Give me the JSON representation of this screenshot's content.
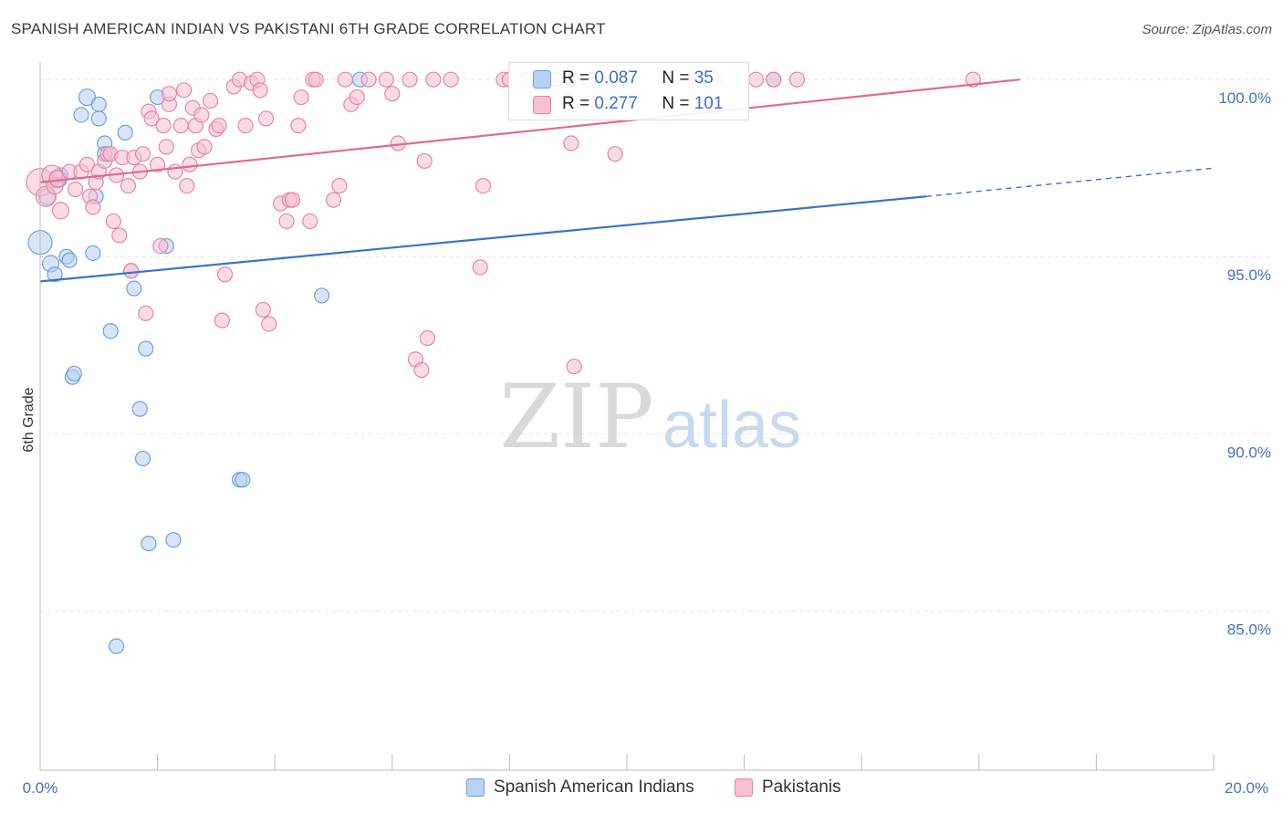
{
  "title": "SPANISH AMERICAN INDIAN VS PAKISTANI 6TH GRADE CORRELATION CHART",
  "source": "Source: ZipAtlas.com",
  "watermark": {
    "zip": "ZIP",
    "atlas": "atlas"
  },
  "legend": {
    "series": [
      {
        "name": "Spanish American Indians",
        "r_label": "R =",
        "r_value": "0.087",
        "n_label": "N =",
        "n_value": "35",
        "color": "#6fa0e0",
        "fill": "#b8d0f2"
      },
      {
        "name": "Pakistanis",
        "r_label": "R =",
        "r_value": "0.277",
        "n_label": "N =",
        "n_value": "101",
        "color": "#e884a6",
        "fill": "#f7bfd1"
      }
    ]
  },
  "chart_data": {
    "type": "scatter",
    "ylabel": "6th Grade",
    "xlim": [
      0,
      20
    ],
    "ylim": [
      80.5,
      100.7
    ],
    "x_tick_labels": [
      "0.0%",
      "20.0%"
    ],
    "y_ticks": [
      {
        "value": 100,
        "label": "100.0%"
      },
      {
        "value": 95,
        "label": "95.0%"
      },
      {
        "value": 90,
        "label": "90.0%"
      },
      {
        "value": 85,
        "label": "85.0%"
      }
    ],
    "grid": true,
    "series": [
      {
        "name": "Spanish American Indians",
        "color": "#6fa0e0",
        "fill": "#b8d0f2",
        "trend": {
          "x0": 0,
          "y0": 94.3,
          "x1": 15.1,
          "y1": 96.7,
          "dash_to_x": 20,
          "dash_to_y": 97.5,
          "color": "#3a72c8"
        },
        "points": [
          [
            0.0,
            95.4,
            26
          ],
          [
            0.12,
            96.7,
            18
          ],
          [
            0.18,
            94.8,
            18
          ],
          [
            0.25,
            94.5,
            16
          ],
          [
            0.3,
            97.2,
            20
          ],
          [
            0.45,
            95.0,
            16
          ],
          [
            0.5,
            94.9,
            16
          ],
          [
            0.55,
            91.6,
            16
          ],
          [
            0.58,
            91.7,
            16
          ],
          [
            0.7,
            99.0,
            16
          ],
          [
            0.8,
            99.5,
            18
          ],
          [
            0.9,
            95.1,
            16
          ],
          [
            0.95,
            96.7,
            16
          ],
          [
            1.0,
            99.3,
            16
          ],
          [
            1.0,
            98.9,
            16
          ],
          [
            1.1,
            98.2,
            16
          ],
          [
            1.1,
            97.9,
            16
          ],
          [
            1.2,
            92.9,
            16
          ],
          [
            1.3,
            84.0,
            16
          ],
          [
            1.45,
            98.5,
            16
          ],
          [
            1.55,
            94.6,
            16
          ],
          [
            1.6,
            94.1,
            16
          ],
          [
            1.7,
            90.7,
            16
          ],
          [
            1.75,
            89.3,
            16
          ],
          [
            1.8,
            92.4,
            16
          ],
          [
            1.85,
            86.9,
            16
          ],
          [
            2.0,
            99.5,
            16
          ],
          [
            2.15,
            95.3,
            16
          ],
          [
            2.27,
            87.0,
            16
          ],
          [
            3.4,
            88.7,
            16
          ],
          [
            3.45,
            88.7,
            16
          ],
          [
            4.8,
            93.9,
            16
          ],
          [
            5.45,
            100.0,
            16
          ],
          [
            12.5,
            100.0,
            16
          ],
          [
            0.35,
            97.3,
            16
          ]
        ]
      },
      {
        "name": "Pakistanis",
        "color": "#e884a6",
        "fill": "#f7bfd1",
        "trend": {
          "x0": 0,
          "y0": 97.1,
          "x1": 16.7,
          "y1": 100.0,
          "color": "#e06a94"
        },
        "points": [
          [
            0.0,
            97.1,
            30
          ],
          [
            0.1,
            96.7,
            22
          ],
          [
            0.2,
            97.3,
            22
          ],
          [
            0.25,
            97.0,
            18
          ],
          [
            0.3,
            97.2,
            18
          ],
          [
            0.35,
            96.3,
            18
          ],
          [
            0.5,
            97.4,
            16
          ],
          [
            0.6,
            96.9,
            16
          ],
          [
            0.7,
            97.4,
            16
          ],
          [
            0.8,
            97.6,
            16
          ],
          [
            0.85,
            96.7,
            16
          ],
          [
            0.9,
            96.4,
            16
          ],
          [
            0.95,
            97.1,
            16
          ],
          [
            1.0,
            97.4,
            16
          ],
          [
            1.1,
            97.7,
            16
          ],
          [
            1.15,
            97.9,
            16
          ],
          [
            1.2,
            97.9,
            16
          ],
          [
            1.25,
            96.0,
            16
          ],
          [
            1.3,
            97.3,
            16
          ],
          [
            1.35,
            95.6,
            16
          ],
          [
            1.4,
            97.8,
            16
          ],
          [
            1.5,
            97.0,
            16
          ],
          [
            1.55,
            94.6,
            16
          ],
          [
            1.6,
            97.8,
            16
          ],
          [
            1.7,
            97.4,
            16
          ],
          [
            1.75,
            97.9,
            16
          ],
          [
            1.8,
            93.4,
            16
          ],
          [
            1.85,
            99.1,
            16
          ],
          [
            1.9,
            98.9,
            16
          ],
          [
            2.0,
            97.6,
            16
          ],
          [
            2.05,
            95.3,
            16
          ],
          [
            2.1,
            98.7,
            16
          ],
          [
            2.15,
            98.1,
            16
          ],
          [
            2.2,
            99.3,
            16
          ],
          [
            2.3,
            97.4,
            16
          ],
          [
            2.4,
            98.7,
            16
          ],
          [
            2.45,
            99.7,
            16
          ],
          [
            2.5,
            97.0,
            16
          ],
          [
            2.55,
            97.6,
            16
          ],
          [
            2.6,
            99.2,
            16
          ],
          [
            2.65,
            98.7,
            16
          ],
          [
            2.7,
            98.0,
            16
          ],
          [
            2.75,
            99.0,
            16
          ],
          [
            2.8,
            98.1,
            16
          ],
          [
            2.9,
            99.4,
            16
          ],
          [
            3.0,
            98.6,
            16
          ],
          [
            3.05,
            98.7,
            16
          ],
          [
            3.1,
            93.2,
            16
          ],
          [
            3.15,
            94.5,
            16
          ],
          [
            3.3,
            99.8,
            16
          ],
          [
            3.4,
            100.0,
            16
          ],
          [
            3.5,
            98.7,
            16
          ],
          [
            3.6,
            99.9,
            16
          ],
          [
            3.7,
            100.0,
            16
          ],
          [
            3.75,
            99.7,
            16
          ],
          [
            3.8,
            93.5,
            16
          ],
          [
            3.85,
            98.9,
            16
          ],
          [
            3.9,
            93.1,
            16
          ],
          [
            4.1,
            96.5,
            16
          ],
          [
            4.2,
            96.0,
            16
          ],
          [
            4.25,
            96.6,
            16
          ],
          [
            4.3,
            96.6,
            16
          ],
          [
            4.4,
            98.7,
            16
          ],
          [
            4.45,
            99.5,
            16
          ],
          [
            4.6,
            96.0,
            16
          ],
          [
            4.65,
            100.0,
            16
          ],
          [
            4.7,
            100.0,
            16
          ],
          [
            5.0,
            96.6,
            16
          ],
          [
            5.1,
            97.0,
            16
          ],
          [
            5.2,
            100.0,
            16
          ],
          [
            5.3,
            99.3,
            16
          ],
          [
            5.4,
            99.5,
            16
          ],
          [
            5.6,
            100.0,
            16
          ],
          [
            5.9,
            100.0,
            16
          ],
          [
            6.0,
            99.6,
            16
          ],
          [
            6.1,
            98.2,
            16
          ],
          [
            6.3,
            100.0,
            16
          ],
          [
            6.4,
            92.1,
            16
          ],
          [
            6.5,
            91.8,
            16
          ],
          [
            6.55,
            97.7,
            16
          ],
          [
            6.6,
            92.7,
            16
          ],
          [
            6.7,
            100.0,
            16
          ],
          [
            7.0,
            100.0,
            16
          ],
          [
            7.5,
            94.7,
            16
          ],
          [
            7.55,
            97.0,
            16
          ],
          [
            7.9,
            100.0,
            16
          ],
          [
            8.0,
            100.0,
            16
          ],
          [
            8.3,
            100.0,
            16
          ],
          [
            8.6,
            100.0,
            16
          ],
          [
            8.8,
            100.0,
            16
          ],
          [
            9.05,
            98.2,
            16
          ],
          [
            9.1,
            91.9,
            16
          ],
          [
            9.35,
            100.0,
            16
          ],
          [
            9.8,
            97.9,
            16
          ],
          [
            11.2,
            100.0,
            16
          ],
          [
            11.5,
            100.0,
            16
          ],
          [
            12.2,
            100.0,
            16
          ],
          [
            12.5,
            100.0,
            16
          ],
          [
            12.9,
            100.0,
            16
          ],
          [
            15.9,
            100.0,
            16
          ],
          [
            2.2,
            99.6,
            16
          ]
        ]
      }
    ]
  }
}
